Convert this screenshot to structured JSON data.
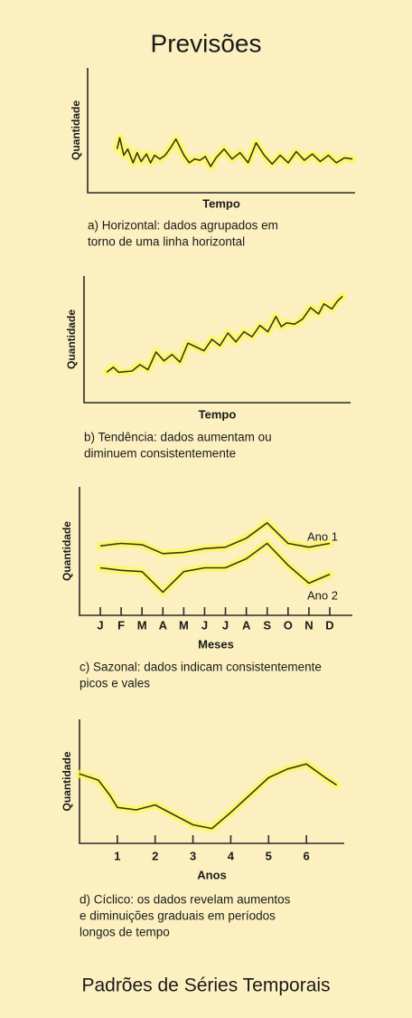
{
  "title": "Previsões",
  "footer": "Padrões de Séries Temporais",
  "chart_data": [
    {
      "type": "line",
      "x_label": "Tempo",
      "y_label": "Quantidade",
      "caption": [
        "a) Horizontal: dados agrupados em",
        "torno de uma linha horizontal"
      ],
      "xlim": [
        0,
        100
      ],
      "ylim": [
        0,
        100
      ],
      "color": "#3a3a1a",
      "x": [
        11,
        12,
        13.5,
        15,
        17,
        18.5,
        20,
        22,
        23.5,
        25,
        27,
        29,
        31,
        33,
        36,
        38,
        40,
        42,
        44,
        46,
        48,
        51,
        54,
        57,
        60,
        63,
        66,
        69,
        72,
        75,
        78,
        81,
        84,
        87,
        90,
        93,
        96,
        99
      ],
      "values": [
        35,
        44,
        30,
        35,
        24,
        32,
        25,
        31,
        24,
        30,
        27,
        30,
        36,
        43,
        30,
        24,
        27,
        26,
        29,
        21,
        28,
        35,
        27,
        32,
        24,
        40,
        30,
        23,
        30,
        24,
        33,
        26,
        31,
        25,
        30,
        24,
        28,
        27
      ]
    },
    {
      "type": "line",
      "x_label": "Tempo",
      "y_label": "Quantidade",
      "caption": [
        "b) Tendência: dados aumentam ou",
        "diminuem consistentemente"
      ],
      "xlim": [
        0,
        100
      ],
      "ylim": [
        0,
        100
      ],
      "color": "#3a3a1a",
      "x": [
        8.5,
        11,
        13,
        18,
        21,
        24,
        27,
        30,
        33,
        36,
        39,
        42,
        45,
        48,
        51,
        54,
        57,
        60,
        63,
        66,
        69,
        72,
        74,
        76,
        79,
        82,
        85,
        88,
        90,
        93,
        95,
        97
      ],
      "values": [
        24,
        28,
        24,
        25,
        30,
        26,
        40,
        33,
        38,
        32,
        47,
        44,
        41,
        50,
        45,
        55,
        48,
        56,
        52,
        61,
        56,
        68,
        60,
        63,
        62,
        66,
        75,
        70,
        78,
        74,
        80,
        84
      ]
    },
    {
      "type": "line",
      "x_label": "Meses",
      "y_label": "Quantidade",
      "caption": [
        "c) Sazonal: dados indicam consistentemente",
        "picos e vales"
      ],
      "ylim": [
        0,
        100
      ],
      "categories": [
        "J",
        "F",
        "M",
        "A",
        "M",
        "J",
        "J",
        "A",
        "S",
        "O",
        "N",
        "D"
      ],
      "series": [
        {
          "name": "Ano 1",
          "color": "#3a3a1a",
          "values": [
            54,
            56,
            55,
            48,
            49,
            52,
            53,
            60,
            72,
            56,
            53,
            56
          ]
        },
        {
          "name": "Ano 2",
          "color": "#3a3a1a",
          "values": [
            37,
            35,
            34,
            18,
            34,
            37,
            37,
            44,
            56,
            39,
            25,
            32
          ]
        }
      ]
    },
    {
      "type": "line",
      "x_label": "Anos",
      "y_label": "Quantidade",
      "caption": [
        "d) Cíclico: os dados revelam aumentos",
        "e diminuições graduais em períodos",
        "longos de tempo"
      ],
      "xlim": [
        0,
        7
      ],
      "ylim": [
        0,
        100
      ],
      "xticks": [
        1,
        2,
        3,
        4,
        5,
        6
      ],
      "color": "#3a3a1a",
      "x": [
        0,
        0.5,
        0.8,
        1,
        1.5,
        2,
        2.5,
        3,
        3.5,
        4,
        4.5,
        5,
        5.5,
        6,
        6.5,
        6.8
      ],
      "values": [
        56,
        51,
        39,
        29,
        27,
        31,
        23,
        15,
        12,
        25,
        39,
        53,
        60,
        64,
        53,
        47
      ]
    }
  ]
}
